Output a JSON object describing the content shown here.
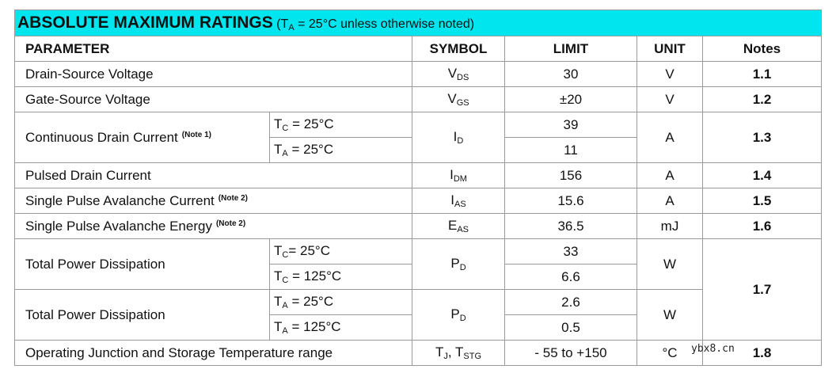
{
  "title": {
    "text": "ABSOLUTE MAXIMUM RATINGS",
    "condition": {
      "main": "(T",
      "sub": "A",
      "rest": " = 25°C unless otherwise noted)"
    }
  },
  "columns": [
    "PARAMETER",
    "SYMBOL",
    "LIMIT",
    "UNIT",
    "Notes"
  ],
  "rows": [
    {
      "parameter": "Drain-Source Voltage",
      "symbol": [
        {
          "main": "V",
          "sub": "DS"
        }
      ],
      "limits": [
        "30"
      ],
      "unit": "V",
      "note": "1.1"
    },
    {
      "parameter": "Gate-Source Voltage",
      "symbol": [
        {
          "main": "V",
          "sub": "GS"
        }
      ],
      "limits": [
        "±20"
      ],
      "unit": "V",
      "note": "1.2"
    },
    {
      "parameter": "Continuous Drain Current",
      "note_ref": "(Note 1)",
      "conditions": [
        {
          "main": "T",
          "sub": "C",
          "rest": " = 25°C"
        },
        {
          "main": "T",
          "sub": "A",
          "rest": " = 25°C"
        }
      ],
      "symbol": [
        {
          "main": "I",
          "sub": "D"
        }
      ],
      "limits": [
        "39",
        "11"
      ],
      "unit": "A",
      "note": "1.3"
    },
    {
      "parameter": "Pulsed Drain Current",
      "symbol": [
        {
          "main": "I",
          "sub": "DM"
        }
      ],
      "limits": [
        "156"
      ],
      "unit": "A",
      "note": "1.4"
    },
    {
      "parameter": "Single Pulse Avalanche Current",
      "note_ref": "(Note 2)",
      "symbol": [
        {
          "main": "I",
          "sub": "AS"
        }
      ],
      "limits": [
        "15.6"
      ],
      "unit": "A",
      "note": "1.5"
    },
    {
      "parameter": "Single Pulse Avalanche Energy",
      "note_ref": "(Note 2)",
      "symbol": [
        {
          "main": "E",
          "sub": "AS"
        }
      ],
      "limits": [
        "36.5"
      ],
      "unit": "mJ",
      "note": "1.6"
    },
    {
      "parameter": "Total Power Dissipation",
      "conditions": [
        {
          "main": "T",
          "sub": "C",
          "rest": "= 25°C"
        },
        {
          "main": "T",
          "sub": "C",
          "rest": " = 125°C"
        }
      ],
      "symbol": [
        {
          "main": "P",
          "sub": "D"
        }
      ],
      "limits": [
        "33",
        "6.6"
      ],
      "unit": "W",
      "note": "1.7"
    },
    {
      "parameter": "Total Power Dissipation",
      "conditions": [
        {
          "main": "T",
          "sub": "A",
          "rest": " = 25°C"
        },
        {
          "main": "T",
          "sub": "A",
          "rest": " = 125°C"
        }
      ],
      "symbol": [
        {
          "main": "P",
          "sub": "D"
        }
      ],
      "limits": [
        "2.6",
        "0.5"
      ],
      "unit": "W"
    },
    {
      "parameter": "Operating Junction and Storage Temperature range",
      "symbol": [
        {
          "main": "T",
          "sub": "J"
        },
        {
          "main": ", T",
          "sub": "STG"
        }
      ],
      "limits": [
        "- 55 to +150"
      ],
      "unit": "°C",
      "note": "1.8"
    }
  ],
  "watermark": "ybx8.cn"
}
